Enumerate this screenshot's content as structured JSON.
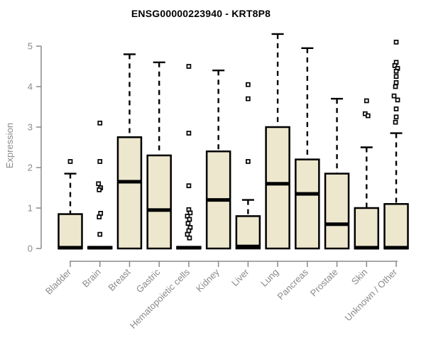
{
  "title": "ENSG00000223940 - KRT8P8",
  "colors": {
    "background": "#FFFFFF",
    "box_fill": "#EDE7CE",
    "box_stroke": "#000000",
    "median": "#000000",
    "whisker": "#000000",
    "outlier_stroke": "#000000",
    "outlier_fill": "#FFFFFF",
    "axis": "#8A8A8A",
    "tick_label": "#8A8A8A",
    "title_text": "#000000"
  },
  "chart_data": {
    "type": "boxplot",
    "title": "ENSG00000223940 - KRT8P8",
    "xlabel": "",
    "ylabel": "Expression",
    "ylim": [
      0,
      5
    ],
    "yticks": [
      0,
      1,
      2,
      3,
      4,
      5
    ],
    "grid": false,
    "x_tick_rotation": -45,
    "categories": [
      "Bladder",
      "Brain",
      "Breast",
      "Gastric",
      "Hematopoietic cells",
      "Kidney",
      "Liver",
      "Lung",
      "Pancreas",
      "Prostate",
      "Skin",
      "Unknown / Other"
    ],
    "boxes": [
      {
        "category": "Bladder",
        "q1": 0,
        "median": 0.02,
        "q3": 0.85,
        "whisker_low": 0,
        "whisker_high": 1.85,
        "outliers": [
          [
            2.15,
            0
          ]
        ]
      },
      {
        "category": "Brain",
        "q1": 0,
        "median": 0.02,
        "q3": 0.04,
        "whisker_low": 0,
        "whisker_high": 0.05,
        "outliers": [
          [
            3.1,
            0
          ],
          [
            2.15,
            0
          ],
          [
            1.6,
            -2
          ],
          [
            1.5,
            1
          ],
          [
            1.45,
            -1
          ],
          [
            0.87,
            1
          ],
          [
            0.78,
            -1
          ],
          [
            0.35,
            0
          ]
        ]
      },
      {
        "category": "Breast",
        "q1": 0,
        "median": 1.65,
        "q3": 2.75,
        "whisker_low": 0,
        "whisker_high": 4.8,
        "outliers": []
      },
      {
        "category": "Gastric",
        "q1": 0,
        "median": 0.95,
        "q3": 2.3,
        "whisker_low": 0,
        "whisker_high": 4.6,
        "outliers": []
      },
      {
        "category": "Hematopoietic cells",
        "q1": 0,
        "median": 0.02,
        "q3": 0.04,
        "whisker_low": 0,
        "whisker_high": 0.05,
        "outliers": [
          [
            4.5,
            0
          ],
          [
            2.85,
            0
          ],
          [
            1.55,
            0
          ],
          [
            0.96,
            0
          ],
          [
            0.88,
            2
          ],
          [
            0.8,
            -2
          ],
          [
            0.72,
            1
          ],
          [
            0.62,
            -1
          ],
          [
            0.52,
            2
          ],
          [
            0.44,
            0
          ],
          [
            0.35,
            -2
          ],
          [
            0.26,
            1
          ]
        ]
      },
      {
        "category": "Kidney",
        "q1": 0,
        "median": 1.2,
        "q3": 2.4,
        "whisker_low": 0,
        "whisker_high": 4.4,
        "outliers": []
      },
      {
        "category": "Liver",
        "q1": 0,
        "median": 0.05,
        "q3": 0.8,
        "whisker_low": 0,
        "whisker_high": 1.2,
        "outliers": [
          [
            4.05,
            0
          ],
          [
            3.7,
            0
          ],
          [
            2.15,
            0
          ]
        ]
      },
      {
        "category": "Lung",
        "q1": 0,
        "median": 1.6,
        "q3": 3.0,
        "whisker_low": 0,
        "whisker_high": 5.3,
        "outliers": []
      },
      {
        "category": "Pancreas",
        "q1": 0,
        "median": 1.35,
        "q3": 2.2,
        "whisker_low": 0,
        "whisker_high": 4.95,
        "outliers": []
      },
      {
        "category": "Prostate",
        "q1": 0,
        "median": 0.6,
        "q3": 1.85,
        "whisker_low": 0,
        "whisker_high": 3.7,
        "outliers": []
      },
      {
        "category": "Skin",
        "q1": 0,
        "median": 0.02,
        "q3": 1.0,
        "whisker_low": 0,
        "whisker_high": 2.5,
        "outliers": [
          [
            3.65,
            0
          ],
          [
            3.33,
            -2
          ],
          [
            3.28,
            2
          ]
        ]
      },
      {
        "category": "Unknown / Other",
        "q1": 0,
        "median": 0.02,
        "q3": 1.1,
        "whisker_low": 0,
        "whisker_high": 2.85,
        "outliers": [
          [
            5.1,
            0
          ],
          [
            4.6,
            0
          ],
          [
            4.52,
            -2
          ],
          [
            4.45,
            2
          ],
          [
            4.38,
            0
          ],
          [
            4.25,
            0
          ],
          [
            4.1,
            0
          ],
          [
            4.0,
            -1
          ],
          [
            3.77,
            -3
          ],
          [
            3.67,
            2
          ],
          [
            3.45,
            0
          ],
          [
            3.25,
            0
          ],
          [
            3.12,
            -1
          ]
        ]
      }
    ]
  }
}
